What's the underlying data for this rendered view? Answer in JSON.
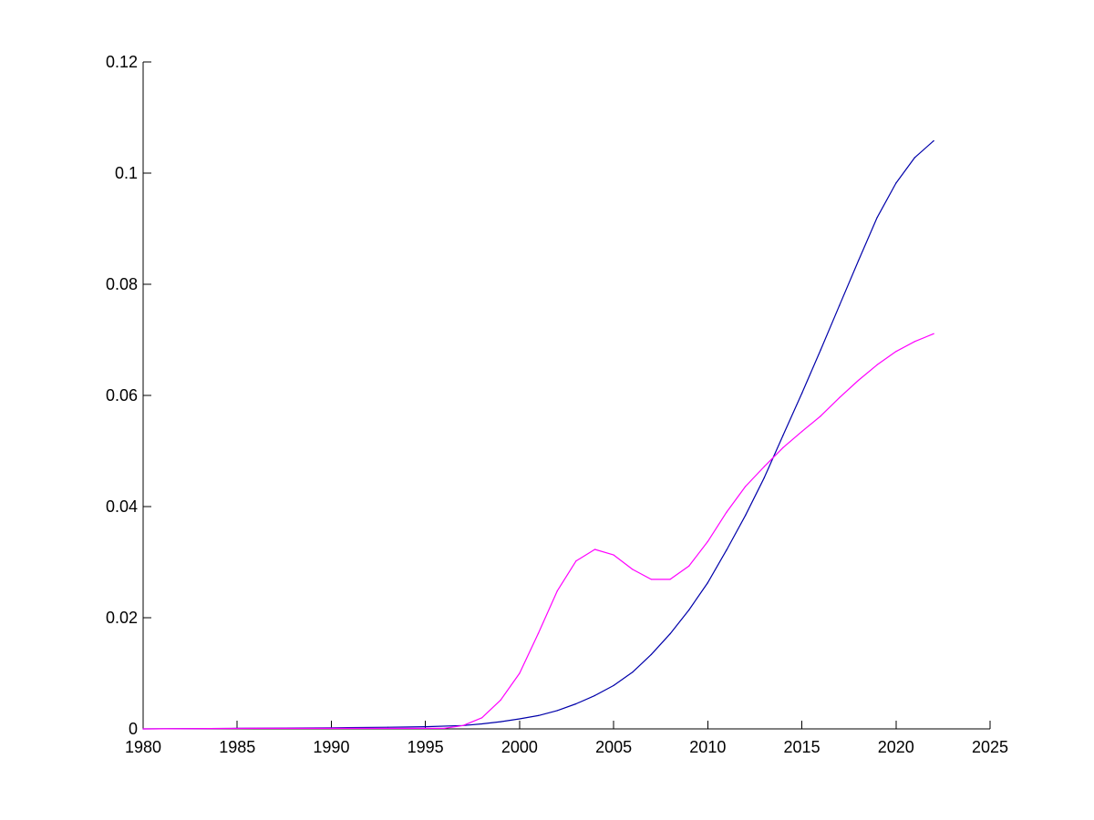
{
  "chart_data": {
    "type": "line",
    "title": "",
    "xlabel": "",
    "ylabel": "",
    "xlim": [
      1980,
      2025
    ],
    "ylim": [
      0,
      0.12
    ],
    "xticks": [
      1980,
      1985,
      1990,
      1995,
      2000,
      2005,
      2010,
      2015,
      2020,
      2025
    ],
    "xtick_labels": [
      "1980",
      "1985",
      "1990",
      "1995",
      "2000",
      "2005",
      "2010",
      "2015",
      "2020",
      "2025"
    ],
    "yticks": [
      0,
      0.02,
      0.04,
      0.06,
      0.08,
      0.1,
      0.12
    ],
    "ytick_labels": [
      "0",
      "0.02",
      "0.04",
      "0.06",
      "0.08",
      "0.1",
      "0.12"
    ],
    "grid": false,
    "legend": "none",
    "series": [
      {
        "color": "#0000aa",
        "x": [
          1980,
          1985,
          1990,
          1993,
          1995,
          1997,
          1998,
          1999,
          2000,
          2001,
          2002,
          2003,
          2004,
          2005,
          2006,
          2007,
          2008,
          2009,
          2010,
          2011,
          2012,
          2013,
          2014,
          2015,
          2016,
          2017,
          2018,
          2019,
          2020,
          2021,
          2022
        ],
        "values": [
          0,
          0.0001,
          0.0002,
          0.0003,
          0.0004,
          0.0006,
          0.0009,
          0.0013,
          0.0018,
          0.0024,
          0.0033,
          0.0045,
          0.006,
          0.0078,
          0.0102,
          0.0134,
          0.0171,
          0.0214,
          0.0263,
          0.0322,
          0.0384,
          0.0452,
          0.0528,
          0.0604,
          0.0682,
          0.0762,
          0.0842,
          0.092,
          0.0982,
          0.1028,
          0.1058
        ]
      },
      {
        "color": "#ff00ff",
        "x": [
          1980,
          1986,
          1990,
          1996,
          1997,
          1998,
          1999,
          2000,
          2001,
          2002,
          2003,
          2004,
          2005,
          2006,
          2007,
          2008,
          2009,
          2010,
          2011,
          2012,
          2013,
          2014,
          2015,
          2016,
          2017,
          2018,
          2019,
          2020,
          2021,
          2022
        ],
        "values": [
          0,
          0.0001,
          0.0001,
          0.0001,
          0.0006,
          0.002,
          0.0052,
          0.01,
          0.0172,
          0.0248,
          0.0302,
          0.0323,
          0.0313,
          0.0287,
          0.0269,
          0.0269,
          0.0293,
          0.0337,
          0.039,
          0.0436,
          0.0472,
          0.0506,
          0.0535,
          0.0563,
          0.0596,
          0.0627,
          0.0655,
          0.0679,
          0.0697,
          0.0711
        ]
      }
    ]
  }
}
